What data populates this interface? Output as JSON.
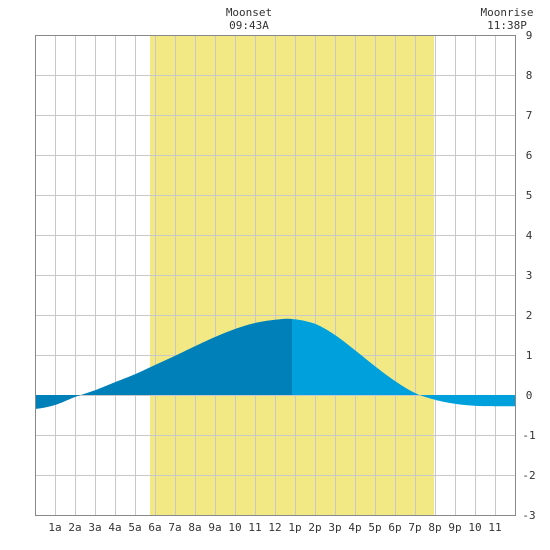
{
  "chart_data": {
    "type": "area",
    "title": "",
    "xlabel": "",
    "ylabel": "",
    "xlim": [
      0,
      24
    ],
    "ylim": [
      -3,
      9
    ],
    "y_ticks": [
      -3,
      -2,
      -1,
      0,
      1,
      2,
      3,
      4,
      5,
      6,
      7,
      8,
      9
    ],
    "y_axis_side": "right",
    "x_ticks": [
      {
        "hour": 1,
        "label": "1a"
      },
      {
        "hour": 2,
        "label": "2a"
      },
      {
        "hour": 3,
        "label": "3a"
      },
      {
        "hour": 4,
        "label": "4a"
      },
      {
        "hour": 5,
        "label": "5a"
      },
      {
        "hour": 6,
        "label": "6a"
      },
      {
        "hour": 7,
        "label": "7a"
      },
      {
        "hour": 8,
        "label": "8a"
      },
      {
        "hour": 9,
        "label": "9a"
      },
      {
        "hour": 10,
        "label": "10"
      },
      {
        "hour": 11,
        "label": "11"
      },
      {
        "hour": 12,
        "label": "12"
      },
      {
        "hour": 13,
        "label": "1p"
      },
      {
        "hour": 14,
        "label": "2p"
      },
      {
        "hour": 15,
        "label": "3p"
      },
      {
        "hour": 16,
        "label": "4p"
      },
      {
        "hour": 17,
        "label": "5p"
      },
      {
        "hour": 18,
        "label": "6p"
      },
      {
        "hour": 19,
        "label": "7p"
      },
      {
        "hour": 20,
        "label": "8p"
      },
      {
        "hour": 21,
        "label": "9p"
      },
      {
        "hour": 22,
        "label": "10"
      },
      {
        "hour": 23,
        "label": "11"
      }
    ],
    "grid": true,
    "daylight": {
      "start_hour": 5.75,
      "end_hour": 19.95,
      "color": "#f2e985"
    },
    "series": [
      {
        "color_rising": "#0080b8",
        "color_falling": "#00a0dc",
        "peak_hour": 12.85,
        "x": [
          0,
          1,
          2,
          3,
          4,
          5,
          6,
          7,
          8,
          9,
          10,
          11,
          12,
          12.85,
          14,
          15,
          16,
          17,
          18,
          19,
          20,
          21,
          22,
          23,
          24
        ],
        "y": [
          -0.35,
          -0.25,
          -0.05,
          0.12,
          0.32,
          0.52,
          0.75,
          0.98,
          1.22,
          1.45,
          1.65,
          1.8,
          1.88,
          1.9,
          1.78,
          1.5,
          1.12,
          0.72,
          0.35,
          0.05,
          -0.12,
          -0.22,
          -0.27,
          -0.28,
          -0.28
        ]
      }
    ],
    "annotations": [
      {
        "hour": 10.7,
        "line1": "Moonset",
        "line2": "09:43A"
      },
      {
        "hour": 23.6,
        "line1": "Moonrise",
        "line2": "11:38P"
      }
    ]
  },
  "colors": {
    "background": "#ffffff",
    "grid": "#c8c8c8",
    "axis_text": "#333333"
  }
}
